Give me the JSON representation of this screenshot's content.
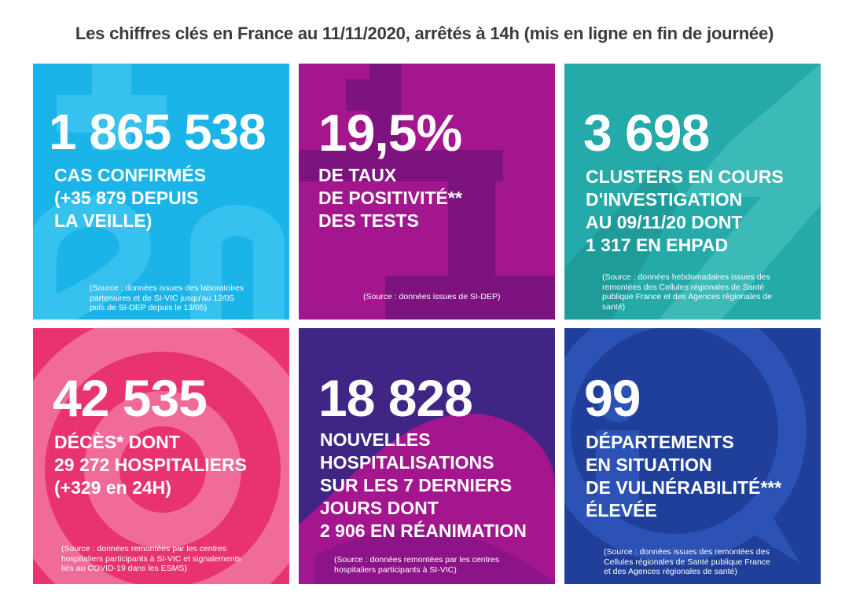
{
  "title": "Les chiffres clés en France au 11/11/2020, arrêtés à 14h (mis en ligne en fin de journée)",
  "colors": {
    "cases": "#1ab4e8",
    "positivity": "#a3168e",
    "clusters": "#23aaa9",
    "deaths": "#e8336e",
    "hospitalisations": "#3f2584",
    "departments": "#1f3f9a"
  },
  "tiles": [
    {
      "id": "cases",
      "figure": "1 865 538",
      "label": "CAS CONFIRMÉS\n(+35 879 DEPUIS\nLA VEILLE)",
      "source": "(Source : données issues des laboratoires\npartenaires et de SI-VIC jusqu'au 12/05\npuis de SI-DEP depuis le 13/05)"
    },
    {
      "id": "positivity",
      "figure": "19,5%",
      "label": "DE TAUX\nDE POSITIVITÉ**\nDES TESTS",
      "source": "(Source : données issues de SI-DEP)"
    },
    {
      "id": "clusters",
      "figure": "3 698",
      "label": "CLUSTERS EN COURS\nD'INVESTIGATION\nAU 09/11/20 DONT\n1 317 EN EHPAD",
      "source": "(Source : données hebdomadaires issues des\nremontées des Cellules régionales de Santé\npublique France et des Agences régionales de\nsanté)"
    },
    {
      "id": "deaths",
      "figure": "42 535",
      "label": "DÉCÈS* DONT\n29 272 HOSPITALIERS\n(+329 en 24H)",
      "source": "(Source : données remontées par les centres\nhospitaliers participants à SI-VIC et signalements\nliés au COVID-19 dans les ESMS)"
    },
    {
      "id": "hospitalisations",
      "figure": "18 828",
      "label": "NOUVELLES\nHOSPITALISATIONS\nSUR LES 7 DERNIERS\nJOURS DONT\n2 906 EN RÉANIMATION",
      "source": "(Source : données remontées par les centres\nhospitaliers participants à SI-VIC)"
    },
    {
      "id": "departments",
      "figure": "99",
      "label": "DÉPARTEMENTS\nEN SITUATION\nDE VULNÉRABILITÉ***\nÉLEVÉE",
      "source": "(Source : données issues des remontées des\nCellules régionales de Santé publique France\net des Agences régionales de santé)"
    }
  ]
}
